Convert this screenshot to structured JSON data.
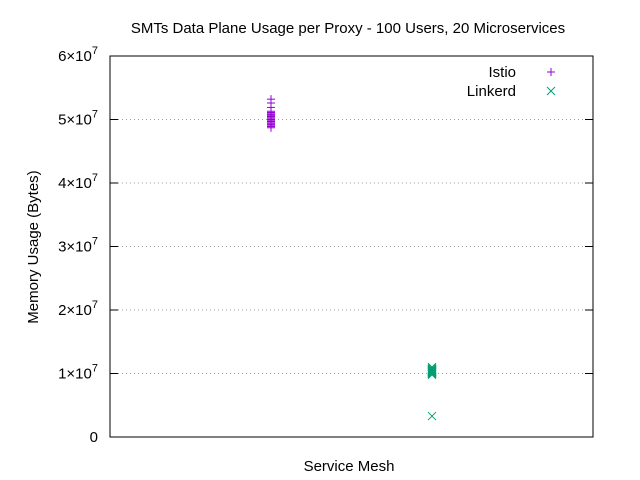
{
  "chart_data": {
    "type": "scatter",
    "title": "SMTs Data Plane Usage per Proxy - 100 Users, 20 Microservices",
    "xlabel": "Service Mesh",
    "ylabel": "Memory Usage (Bytes)",
    "xlim": [
      0,
      3
    ],
    "ylim": [
      0,
      60000000
    ],
    "grid": "y",
    "legend_position": "top-right",
    "yticks": [
      {
        "value": 0,
        "label": "0"
      },
      {
        "value": 10000000,
        "mantissa": "1×10",
        "exp": "7"
      },
      {
        "value": 20000000,
        "mantissa": "2×10",
        "exp": "7"
      },
      {
        "value": 30000000,
        "mantissa": "3×10",
        "exp": "7"
      },
      {
        "value": 40000000,
        "mantissa": "4×10",
        "exp": "7"
      },
      {
        "value": 50000000,
        "mantissa": "5×10",
        "exp": "7"
      },
      {
        "value": 60000000,
        "mantissa": "6×10",
        "exp": "7"
      }
    ],
    "series": [
      {
        "name": "Istio",
        "marker": "plus",
        "color": "#9400d3",
        "x": [
          1,
          1,
          1,
          1,
          1,
          1,
          1,
          1,
          1,
          1,
          1,
          1,
          1,
          1,
          1,
          1,
          1,
          1,
          1,
          1
        ],
        "y": [
          53200000,
          52600000,
          51900000,
          51300000,
          51000000,
          50800000,
          50600000,
          50400000,
          50200000,
          50000000,
          49800000,
          49600000,
          49400000,
          49200000,
          49000000,
          48900000,
          48700000,
          50500000,
          49700000,
          51100000
        ]
      },
      {
        "name": "Linkerd",
        "marker": "x",
        "color": "#009e73",
        "x": [
          2,
          2,
          2,
          2,
          2,
          2,
          2,
          2,
          2,
          2,
          2,
          2,
          2,
          2,
          2,
          2,
          2,
          2,
          2,
          2
        ],
        "y": [
          11000000,
          10800000,
          10700000,
          10600000,
          10500000,
          10400000,
          10300000,
          10200000,
          10100000,
          10000000,
          9900000,
          9800000,
          10500000,
          10300000,
          10600000,
          10200000,
          10400000,
          10100000,
          10700000,
          3300000
        ]
      }
    ]
  }
}
